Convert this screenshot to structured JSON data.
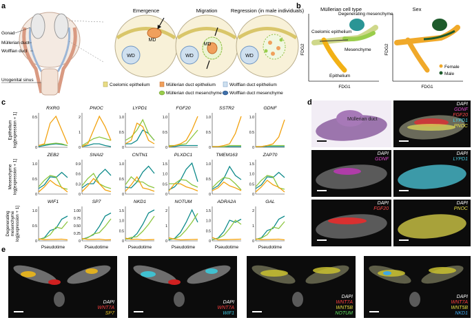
{
  "panel_labels": {
    "a": "a",
    "b": "b",
    "c": "c",
    "d": "d",
    "e": "e"
  },
  "a": {
    "anatomy": {
      "gonad": "Gonad",
      "md": "Müllerian duct",
      "wd": "Wolffian duct",
      "ugs": "Urogenital sinus"
    },
    "stages": [
      "Emergence",
      "Migration",
      "Regression (in male individuals)"
    ],
    "circle_labels": {
      "md": "MD",
      "wd": "WD"
    },
    "legend": [
      "Coelomic epithelium",
      "Müllerian duct epithelium",
      "Müllerian duct mesenchyme",
      "Wolffian duct epithelium",
      "Wolffian duct mesenchyme"
    ]
  },
  "b": {
    "left_title": "Müllerian cell type",
    "right_title": "Sex",
    "xlabel": "FDG1",
    "ylabel": "FDG2",
    "cluster_labels": [
      "Degenerating mesenchyme",
      "Coelomic epithelium",
      "Mesenchyme",
      "Epithelium"
    ],
    "sex_legend": [
      "Female",
      "Male"
    ],
    "colors": {
      "female": "#f0a92a",
      "male": "#1e5b2c",
      "epithelium": "#f2b116",
      "mesenchyme": "#9acd4b",
      "degen": "#138a8a",
      "coelomic": "#d7d48a"
    }
  },
  "c": {
    "row_labels": [
      "Epithelium\nlog[expression + 1]",
      "Mesenchyme\nlog[expression + 1]",
      "Degenerating\nmesenchyme\nlog[expression + 1]"
    ],
    "xlabel": "Pseudotime",
    "colors": {
      "epi": "#f2a20f",
      "mes": "#8cc63f",
      "deg": "#0d8a8a"
    },
    "genes": [
      [
        "RXRG",
        "PNOC",
        "LYPD1",
        "FGF20",
        "SSTR2",
        "GDNF"
      ],
      [
        "ZEB2",
        "SNAI2",
        "CNTN1",
        "PLXDC1",
        "TMEM163",
        "ZAP70"
      ],
      [
        "WIF1",
        "SP7",
        "NKD1",
        "NOTUM",
        "ADRA2A",
        "GAL"
      ]
    ],
    "yticks": [
      [
        [
          "0",
          "0.5"
        ],
        [
          "0",
          "1",
          "2"
        ],
        [
          "0",
          "0.5",
          "1.0"
        ],
        [
          "0",
          "0.5",
          "1.0"
        ],
        [
          "0",
          "0.5",
          "1.0"
        ],
        [
          "0",
          "0.5",
          "1.0"
        ]
      ],
      [
        [
          "0",
          "0.5",
          "1.0"
        ],
        [
          "0",
          "0.3",
          "0.6",
          "0.9"
        ],
        [
          "0",
          "0.5",
          "1.0"
        ],
        [
          "0",
          "0.5",
          "1.0",
          "1.5"
        ],
        [
          "0",
          "0.5",
          "1.0"
        ],
        [
          "0",
          "0.5",
          "1.0",
          "1.5"
        ]
      ],
      [
        [
          "0",
          "0.5",
          "1.0"
        ],
        [
          "0",
          "0.25",
          "0.50",
          "0.75",
          "1.00"
        ],
        [
          "0",
          "0.5",
          "1.0",
          "1.5"
        ],
        [
          "0",
          "1",
          "2"
        ],
        [
          "0",
          "0.5",
          "1.0",
          "1.5"
        ],
        [
          "0",
          "1",
          "2"
        ]
      ]
    ]
  },
  "d": {
    "he_label": "Müllerian duct",
    "channel_label_rows": [
      [
        "DAPI",
        "GDNF",
        "FGF20",
        "LYPD1",
        "PNOC"
      ],
      [
        "DAPI",
        "GDNF"
      ],
      [
        "DAPI",
        "LYPD1"
      ],
      [
        "DAPI",
        "FGF20"
      ],
      [
        "DAPI",
        "PNOC"
      ]
    ]
  },
  "e": {
    "label_rows": [
      [
        "DAPI",
        "WNT7A",
        "SP7"
      ],
      [
        "DAPI",
        "WNT7A",
        "WIF1"
      ],
      [
        "DAPI",
        "WNT7A",
        "WNT5B",
        "NOTUM"
      ],
      [
        "DAPI",
        "WNT7A",
        "WNT5B",
        "NKD1"
      ]
    ]
  }
}
